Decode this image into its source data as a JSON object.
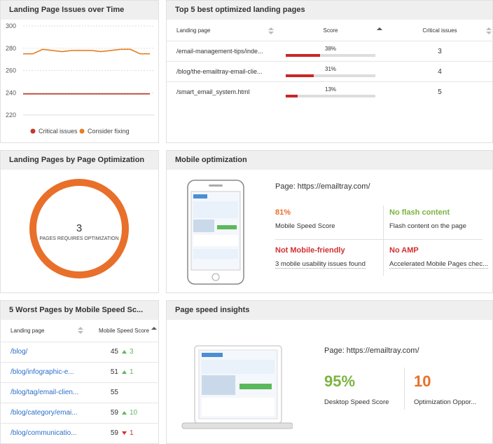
{
  "issues_over_time": {
    "title": "Landing Page Issues over Time",
    "type": "line",
    "ylim": [
      220,
      300
    ],
    "yticks": [
      220,
      240,
      260,
      280,
      300
    ],
    "series": [
      {
        "name": "Critical issues",
        "color": "#c0392b",
        "values": [
          239,
          239,
          239,
          239,
          239,
          239,
          239,
          239,
          239,
          239,
          239,
          239,
          239,
          239
        ]
      },
      {
        "name": "Consider fixing",
        "color": "#e67e22",
        "values": [
          275,
          275,
          279,
          278,
          277,
          278,
          278,
          278,
          277,
          278,
          279,
          279,
          275,
          275
        ]
      }
    ]
  },
  "top5": {
    "title": "Top 5 best optimized landing pages",
    "headers": [
      "Landing page",
      "Score",
      "Critical issues"
    ],
    "bar_color": "#c62828",
    "score_max": 100,
    "rows": [
      {
        "page": "/email-management-tips/inde...",
        "score": 38,
        "score_label": "38%",
        "critical": 3
      },
      {
        "page": "/blog/the-emailtray-email-clie...",
        "score": 31,
        "score_label": "31%",
        "critical": 4
      },
      {
        "page": "/smart_email_system.html",
        "score": 13,
        "score_label": "13%",
        "critical": 5
      }
    ]
  },
  "by_optimization": {
    "title": "Landing Pages by Page Optimization",
    "type": "donut",
    "value": 3,
    "label": "PAGES REQUIRES OPTIMIZATION",
    "color": "#e8702a"
  },
  "mobile": {
    "title": "Mobile optimization",
    "page": "Page: https://emailtray.com/",
    "items": [
      {
        "value": "81%",
        "label": "Mobile Speed Score",
        "color": "#e8702a"
      },
      {
        "value": "No flash content",
        "label": "Flash content on the page",
        "color": "#7cb342"
      },
      {
        "value": "Not Mobile-friendly",
        "label": "3 mobile usability issues found",
        "color": "#d32f2f"
      },
      {
        "value": "No AMP",
        "label": "Accelerated Mobile Pages chec...",
        "color": "#d32f2f"
      }
    ]
  },
  "worst": {
    "title": "5 Worst Pages by Mobile Speed Sc...",
    "headers": [
      "Landing page",
      "Mobile Speed Score"
    ],
    "rows": [
      {
        "page": "/blog/",
        "score": 45,
        "trend": "up",
        "change": 3
      },
      {
        "page": "/blog/infographic-e...",
        "score": 51,
        "trend": "up",
        "change": 1
      },
      {
        "page": "/blog/tag/email-clien...",
        "score": 55,
        "trend": null,
        "change": null
      },
      {
        "page": "/blog/category/emai...",
        "score": 59,
        "trend": "up",
        "change": 10
      },
      {
        "page": "/blog/communicatio...",
        "score": 59,
        "trend": "down",
        "change": 1
      }
    ]
  },
  "speed": {
    "title": "Page speed insights",
    "page": "Page: https://emailtray.com/",
    "items": [
      {
        "value": "95%",
        "label": "Desktop Speed Score",
        "color": "#7cb342"
      },
      {
        "value": "10",
        "label": "Optimization Oppor...",
        "color": "#e8702a"
      }
    ]
  }
}
